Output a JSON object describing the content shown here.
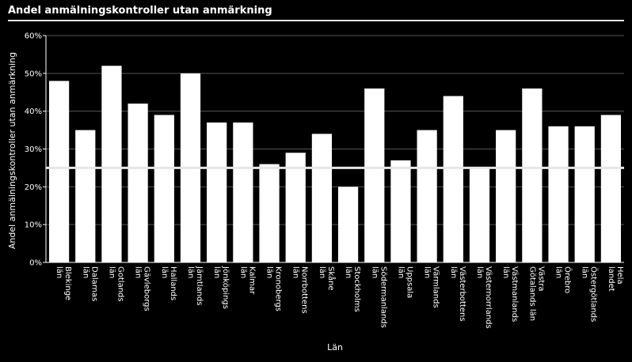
{
  "title": "Andel anmälningskontroller utan anmärkning",
  "chart_data": {
    "type": "bar",
    "title": "Andel anmälningskontroller utan anmärkning",
    "xlabel": "Län",
    "ylabel": "Andel anmälningskontroller utan anmärkning",
    "ylim": [
      0,
      60
    ],
    "y_ticks": [
      "0%",
      "10%",
      "20%",
      "30%",
      "40%",
      "50%",
      "60%"
    ],
    "grid": true,
    "reference_line": 25,
    "categories": [
      [
        "Blekinge",
        "län"
      ],
      [
        "Dalarnas",
        "län"
      ],
      [
        "Gotlands",
        "län"
      ],
      [
        "Gävleborgs",
        "län"
      ],
      [
        "Hallands",
        "län"
      ],
      [
        "Jämtlands",
        "län"
      ],
      [
        "Jönköpings",
        "län"
      ],
      [
        "Kalmar",
        "län"
      ],
      [
        "Kronobergs",
        "län"
      ],
      [
        "Norrbottens",
        "län"
      ],
      [
        "Skåne",
        "län"
      ],
      [
        "Stockholms",
        "län"
      ],
      [
        "Södermanlands",
        "län"
      ],
      [
        "Uppsala",
        "län"
      ],
      [
        "Värmlands",
        "län"
      ],
      [
        "Västerbottens",
        "län"
      ],
      [
        "Västernorrlands",
        "län"
      ],
      [
        "Västmanlands",
        "län"
      ],
      [
        "Västra",
        "Götalands län"
      ],
      [
        "Örebro",
        "län"
      ],
      [
        "Östergötlands",
        "län"
      ],
      [
        "Hela",
        "landet"
      ]
    ],
    "values": [
      48,
      35,
      52,
      42,
      39,
      50,
      37,
      37,
      26,
      29,
      34,
      20,
      46,
      27,
      35,
      44,
      25,
      35,
      46,
      36,
      36,
      39
    ],
    "colors": {
      "background": "#000000",
      "bar": "#ffffff",
      "grid": "#555555",
      "axis": "#ffffff",
      "reference": "#e6e6e6"
    }
  }
}
